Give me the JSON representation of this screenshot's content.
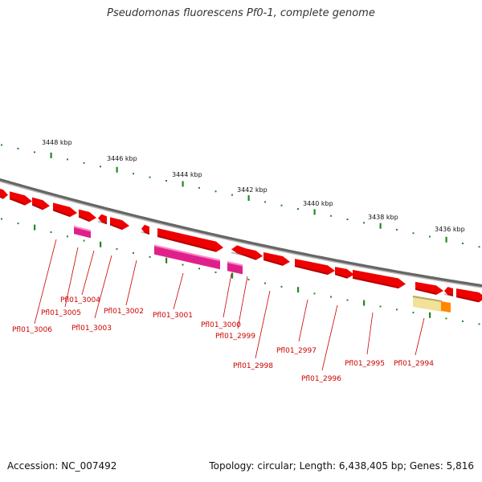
{
  "title": "Pseudomonas fluorescens Pf0-1, complete genome",
  "footer": {
    "accession": "Accession: NC_007492",
    "summary": "Topology: circular; Length: 6,438,405 bp; Genes: 5,816"
  },
  "scale": {
    "unit": "kbp",
    "ticks": [
      "3448 kbp",
      "3446 kbp",
      "3444 kbp",
      "3442 kbp",
      "3440 kbp",
      "3438 kbp",
      "3436 kbp"
    ]
  },
  "colors": {
    "backbone": "#888888",
    "gene_forward": "#ee0000",
    "gene_rna": "#e0208a",
    "pseudogene": "#f0e29a",
    "misc_feature": "#ff8800",
    "tick": "#228822",
    "label": "#cc0000"
  },
  "gene_labels": [
    "Pfl01_3006",
    "Pfl01_3005",
    "Pfl01_3004",
    "Pfl01_3003",
    "Pfl01_3002",
    "Pfl01_3001",
    "Pfl01_3000",
    "Pfl01_2999",
    "Pfl01_2998",
    "Pfl01_2997",
    "Pfl01_2996",
    "Pfl01_2995",
    "Pfl01_2994"
  ]
}
